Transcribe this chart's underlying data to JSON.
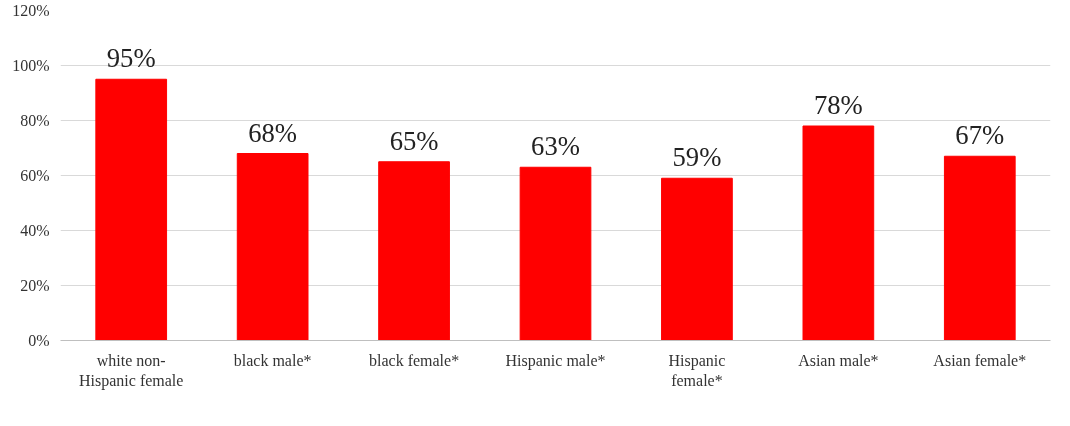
{
  "chart_data": {
    "type": "bar",
    "categories": [
      "white non-Hispanic female",
      "black male*",
      "black female*",
      "Hispanic male*",
      "Hispanic female*",
      "Asian male*",
      "Asian female*"
    ],
    "values": [
      95,
      68,
      65,
      63,
      59,
      78,
      67
    ],
    "value_labels": [
      "95%",
      "68%",
      "65%",
      "63%",
      "59%",
      "78%",
      "67%"
    ],
    "color": "#ff0000",
    "ylim": [
      0,
      120
    ],
    "yticks": [
      {
        "value": 0,
        "label": "0%"
      },
      {
        "value": 20,
        "label": "20%"
      },
      {
        "value": 40,
        "label": "40%"
      },
      {
        "value": 60,
        "label": "60%"
      },
      {
        "value": 80,
        "label": "80%"
      },
      {
        "value": 100,
        "label": "100%"
      },
      {
        "value": 120,
        "label": "120%"
      }
    ],
    "grid": "y"
  }
}
